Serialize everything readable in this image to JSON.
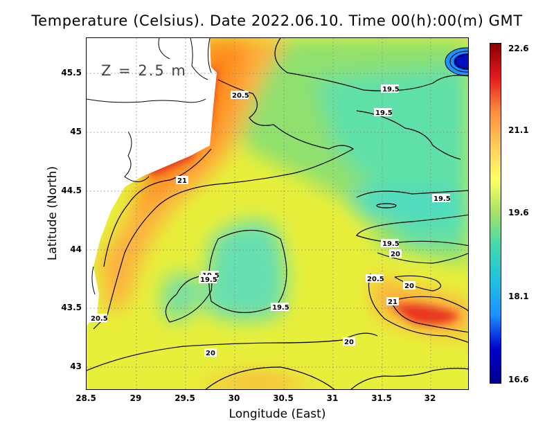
{
  "title": "Temperature (Celsius). Date 2022.06.10. Time 00(h):00(m) GMT",
  "depth_label": "Z = 2.5 m",
  "xlabel": "Longitude (East)",
  "ylabel": "Latitude (North)",
  "x_ticks": [
    "28.5",
    "29",
    "29.5",
    "30",
    "30.5",
    "31",
    "31.5",
    "32"
  ],
  "y_ticks": [
    "45.5",
    "45",
    "44.5",
    "44",
    "43.5",
    "43"
  ],
  "colorbar": {
    "labels": [
      "22.6",
      "21.1",
      "19.6",
      "18.1",
      "16.6"
    ],
    "min": 16.6,
    "max": 22.6,
    "colors": [
      "#8b0000",
      "#e31a1c",
      "#fd8d3c",
      "#fecc5c",
      "#ffff66",
      "#a6e06b",
      "#3fd9b0",
      "#20c0e0",
      "#1e90ff",
      "#0000cd",
      "#00008b"
    ]
  },
  "contour_labels": [
    "20.5",
    "21",
    "19.5",
    "19.5",
    "19.5",
    "19.5",
    "20",
    "19.5",
    "19.5",
    "19.5",
    "20.5",
    "20",
    "21",
    "20",
    "20.5"
  ],
  "chart_data": {
    "type": "heatmap",
    "title": "Temperature (Celsius). Date 2022.06.10. Time 00(h):00(m) GMT",
    "xlabel": "Longitude (East)",
    "ylabel": "Latitude (North)",
    "xlim": [
      28.5,
      32.4
    ],
    "ylim": [
      42.8,
      45.8
    ],
    "value_range": [
      16.6,
      22.6
    ],
    "contour_levels": [
      19.5,
      20,
      20.5,
      21
    ]
  },
  "colors": {
    "land": "#ffffff",
    "warm": "#ff8c1a",
    "hot": "#d7261e",
    "mid": "#f2f23a",
    "cool": "#55e0a0",
    "cold": "#30d8e0"
  }
}
